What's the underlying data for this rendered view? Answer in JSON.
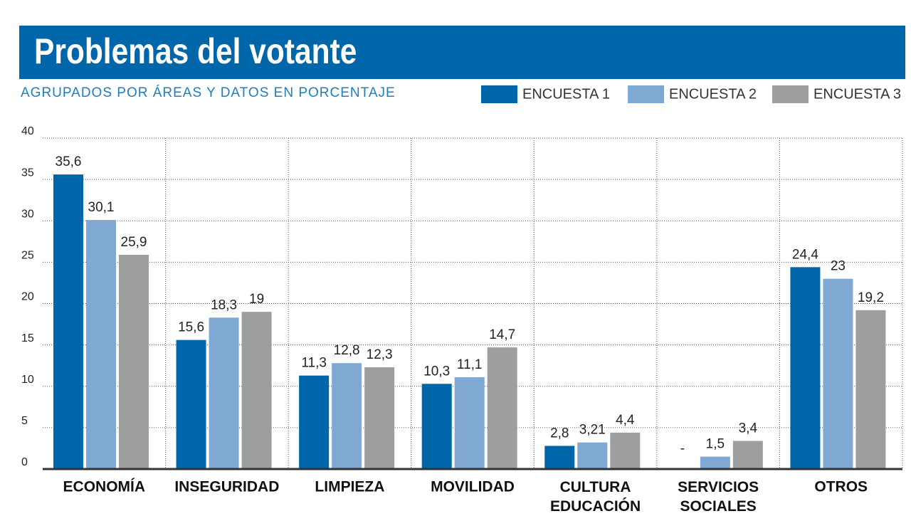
{
  "chart_data": {
    "type": "bar",
    "title": "Problemas del votante",
    "subtitle": "AGRUPADOS POR ÁREAS Y DATOS EN PORCENTAJE",
    "categories": [
      "ECONOMÍA",
      "INSEGURIDAD",
      "LIMPIEZA",
      "MOVILIDAD",
      "CULTURA\nEDUCACIÓN",
      "SERVICIOS\nSOCIALES",
      "OTROS"
    ],
    "series": [
      {
        "name": "ENCUESTA 1",
        "color": "#0066aa",
        "values": [
          35.6,
          15.6,
          11.3,
          10.3,
          2.8,
          null,
          24.4
        ],
        "value_labels": [
          "35,6",
          "15,6",
          "11,3",
          "10,3",
          "2,8",
          "-",
          "24,4"
        ]
      },
      {
        "name": "ENCUESTA 2",
        "color": "#7fa9d3",
        "values": [
          30.1,
          18.3,
          12.8,
          11.1,
          3.21,
          1.5,
          23
        ],
        "value_labels": [
          "30,1",
          "18,3",
          "12,8",
          "11,1",
          "3,21",
          "1,5",
          "23"
        ]
      },
      {
        "name": "ENCUESTA 3",
        "color": "#9d9ea0",
        "values": [
          25.9,
          19,
          12.3,
          14.7,
          4.4,
          3.4,
          19.2
        ],
        "value_labels": [
          "25,9",
          "19",
          "12,3",
          "14,7",
          "4,4",
          "3,4",
          "19,2"
        ]
      }
    ],
    "ylim": [
      0,
      40
    ],
    "yticks": [
      0,
      5,
      10,
      15,
      20,
      25,
      30,
      35,
      40
    ],
    "grid": true
  }
}
